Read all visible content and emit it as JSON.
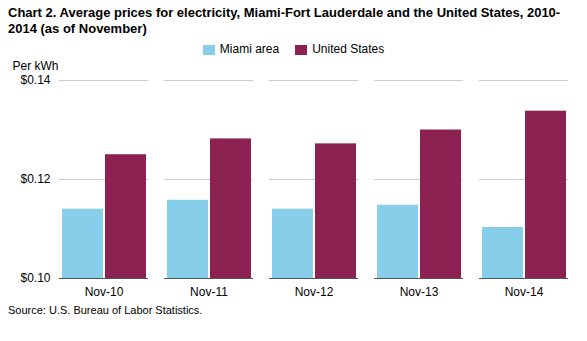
{
  "chart_data": {
    "type": "bar",
    "title": "Chart 2. Average prices for electricity, Miami-Fort Lauderdale and the United States, 2010-2014 (as of November)",
    "ylabel": "Per kWh",
    "source": "Source: U.S. Bureau of Labor Statistics.",
    "categories": [
      "Nov-10",
      "Nov-11",
      "Nov-12",
      "Nov-13",
      "Nov-14"
    ],
    "series": [
      {
        "name": "Miami area",
        "color": "#87CEEB",
        "values": [
          0.114,
          0.1158,
          0.114,
          0.1148,
          0.1103
        ]
      },
      {
        "name": "United States",
        "color": "#8B2252",
        "values": [
          0.125,
          0.1282,
          0.1272,
          0.13,
          0.1338
        ]
      }
    ],
    "ylim": [
      0.1,
      0.14
    ],
    "yticks": [
      {
        "value": 0.1,
        "label": "$0.10"
      },
      {
        "value": 0.12,
        "label": "$0.12"
      },
      {
        "value": 0.14,
        "label": "$0.14"
      }
    ],
    "grid": true,
    "legend": "top"
  }
}
